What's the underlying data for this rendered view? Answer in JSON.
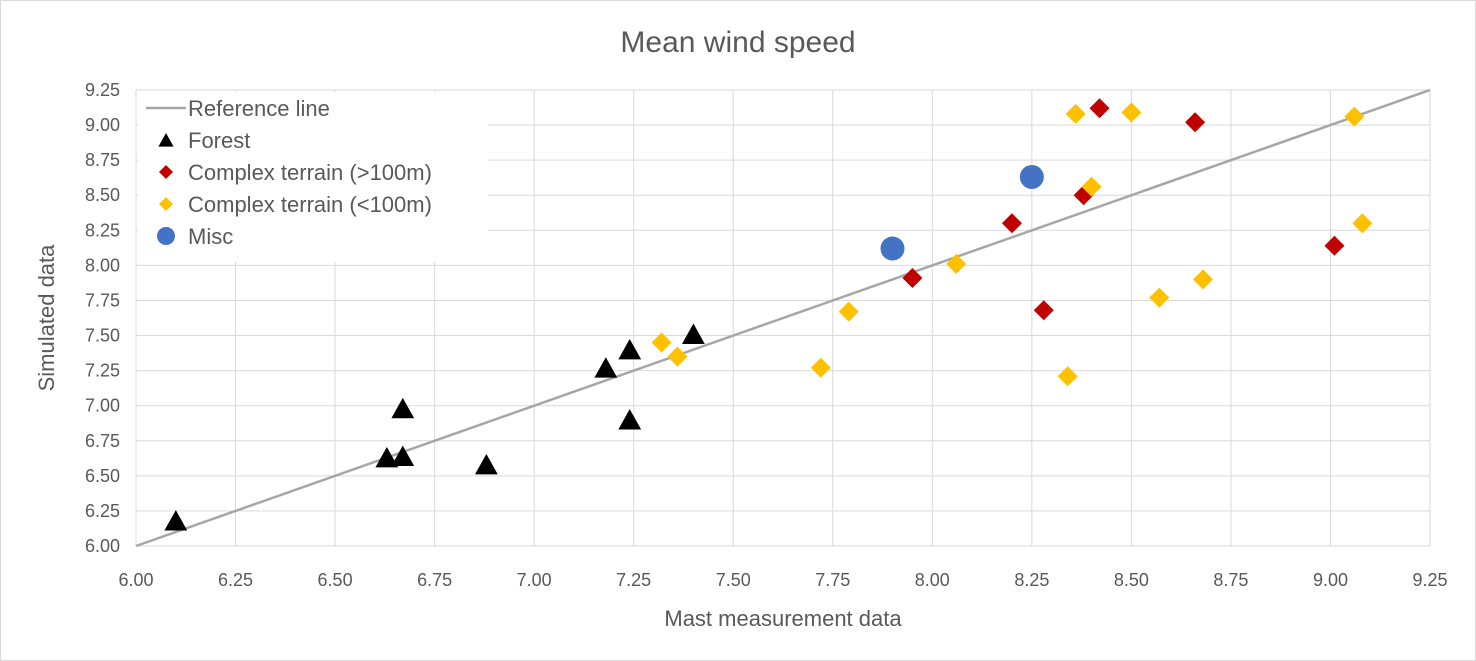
{
  "chart_data": {
    "type": "scatter",
    "title": "Mean wind speed",
    "xlabel": "Mast measurement data",
    "ylabel": "Simulated data",
    "xlim": [
      6.0,
      9.25
    ],
    "ylim": [
      6.0,
      9.25
    ],
    "x_ticks": [
      "6.00",
      "6.25",
      "6.50",
      "6.75",
      "7.00",
      "7.25",
      "7.50",
      "7.75",
      "8.00",
      "8.25",
      "8.50",
      "8.75",
      "9.00",
      "9.25"
    ],
    "y_ticks": [
      "6.00",
      "6.25",
      "6.50",
      "6.75",
      "7.00",
      "7.25",
      "7.50",
      "7.75",
      "8.00",
      "8.25",
      "8.50",
      "8.75",
      "9.00",
      "9.25"
    ],
    "grid": true,
    "legend_position": "top-left",
    "reference_line": {
      "name": "Reference line",
      "color": "#a6a6a6",
      "points": [
        [
          6.0,
          6.0
        ],
        [
          9.25,
          9.25
        ]
      ]
    },
    "series": [
      {
        "name": "Forest",
        "marker": "triangle",
        "color": "#000000",
        "points": [
          [
            6.1,
            6.17
          ],
          [
            6.63,
            6.62
          ],
          [
            6.67,
            6.63
          ],
          [
            6.67,
            6.97
          ],
          [
            6.88,
            6.57
          ],
          [
            7.18,
            7.26
          ],
          [
            7.24,
            7.39
          ],
          [
            7.24,
            6.89
          ],
          [
            7.4,
            7.5
          ]
        ]
      },
      {
        "name": "Complex terrain (>100m)",
        "marker": "diamond",
        "color": "#c00000",
        "points": [
          [
            7.95,
            7.91
          ],
          [
            8.2,
            8.3
          ],
          [
            8.28,
            7.68
          ],
          [
            8.38,
            8.5
          ],
          [
            8.42,
            9.12
          ],
          [
            8.66,
            9.02
          ],
          [
            9.01,
            8.14
          ]
        ]
      },
      {
        "name": "Complex terrain (<100m)",
        "marker": "diamond",
        "color": "#ffc000",
        "points": [
          [
            7.32,
            7.45
          ],
          [
            7.36,
            7.35
          ],
          [
            7.72,
            7.27
          ],
          [
            7.79,
            7.67
          ],
          [
            8.06,
            8.01
          ],
          [
            8.34,
            7.21
          ],
          [
            8.36,
            9.08
          ],
          [
            8.4,
            8.56
          ],
          [
            8.5,
            9.09
          ],
          [
            8.57,
            7.77
          ],
          [
            8.68,
            7.9
          ],
          [
            9.06,
            9.06
          ],
          [
            9.08,
            8.3
          ]
        ]
      },
      {
        "name": "Misc",
        "marker": "circle",
        "color": "#4472c4",
        "points": [
          [
            7.9,
            8.12
          ],
          [
            8.25,
            8.63
          ]
        ]
      }
    ]
  }
}
